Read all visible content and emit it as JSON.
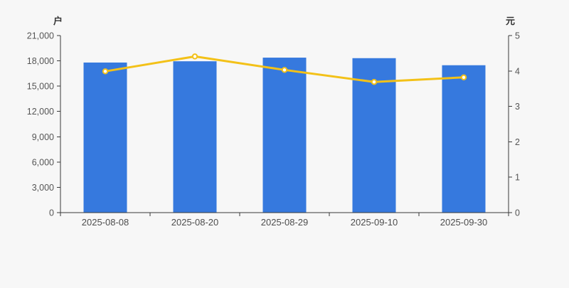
{
  "chart_data": {
    "type": "bar",
    "subtype": "bar+line combo",
    "categories": [
      "2025-08-08",
      "2025-08-20",
      "2025-08-29",
      "2025-09-10",
      "2025-09-30"
    ],
    "series": [
      {
        "name": "户",
        "type": "bar",
        "yaxis": "left",
        "color": "#3679de",
        "values": [
          17800,
          17950,
          18380,
          18320,
          17480
        ]
      },
      {
        "name": "元",
        "type": "line",
        "yaxis": "right",
        "color": "#f3c118",
        "marker_fill": "#ffffff",
        "values": [
          3.99,
          4.41,
          4.03,
          3.69,
          3.82
        ]
      }
    ],
    "left_axis": {
      "unit": "户",
      "min": 0,
      "max": 21000,
      "step": 3000,
      "tick_labels": [
        "0",
        "3,000",
        "6,000",
        "9,000",
        "12,000",
        "15,000",
        "18,000",
        "21,000"
      ]
    },
    "right_axis": {
      "unit": "元",
      "min": 0,
      "max": 5,
      "step": 1,
      "tick_labels": [
        "0",
        "1",
        "2",
        "3",
        "4",
        "5"
      ]
    },
    "title": "",
    "xlabel": "",
    "ylabel_left": "户",
    "ylabel_right": "元",
    "grid": false,
    "legend": false
  },
  "colors": {
    "background": "#f7f7f7",
    "axis_line": "#3a3a3a",
    "tick_text": "#555555",
    "bar": "#3679de",
    "line": "#f3c118"
  }
}
